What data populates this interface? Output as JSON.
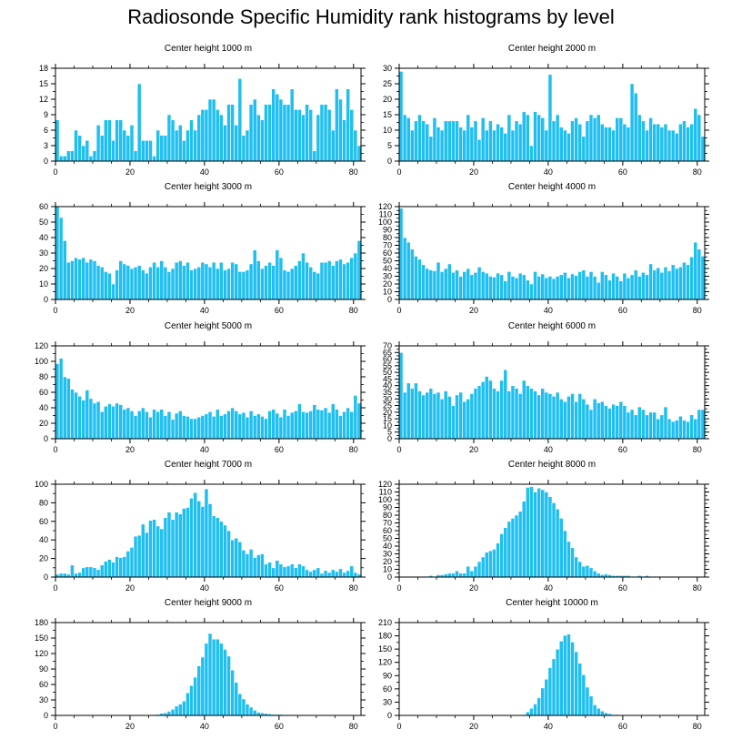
{
  "page_title": "Radiosonde Specific Humidity rank histograms by level",
  "colors": {
    "bar": "#1fbfef",
    "bar_edge": "#ffffff",
    "axis": "#000000"
  },
  "chart_data": [
    {
      "type": "bar",
      "title": "Center height 1000 m",
      "xlim": [
        0,
        82
      ],
      "ylim": [
        0,
        18
      ],
      "x_ticks": [
        0,
        20,
        40,
        60,
        80
      ],
      "y_ticks": [
        0,
        3,
        6,
        9,
        12,
        15,
        18
      ],
      "values": [
        8,
        1,
        1,
        2,
        2,
        6,
        5,
        3,
        4,
        1,
        2,
        7,
        5,
        8,
        8,
        4,
        8,
        8,
        6,
        5,
        7,
        2,
        15,
        4,
        4,
        4,
        1,
        6,
        5,
        5,
        9,
        8,
        6,
        7,
        4,
        6,
        8,
        6,
        9,
        10,
        10,
        12,
        12,
        10,
        9,
        7,
        11,
        11,
        7,
        16,
        5,
        6,
        11,
        12,
        9,
        8,
        11,
        11,
        14,
        13,
        12,
        11,
        11,
        14,
        10,
        10,
        9,
        11,
        10,
        2,
        9,
        11,
        11,
        10,
        6,
        14,
        12,
        8,
        14,
        10,
        6,
        3
      ]
    },
    {
      "type": "bar",
      "title": "Center height 2000 m",
      "xlim": [
        0,
        82
      ],
      "ylim": [
        0,
        30
      ],
      "x_ticks": [
        0,
        20,
        40,
        60,
        80
      ],
      "y_ticks": [
        0,
        5,
        10,
        15,
        20,
        25,
        30
      ],
      "values": [
        29,
        15,
        14,
        10,
        13,
        15,
        13,
        12,
        8,
        14,
        11,
        10,
        13,
        13,
        13,
        13,
        11,
        10,
        15,
        11,
        13,
        7,
        14,
        10,
        13,
        10,
        12,
        11,
        9,
        15,
        10,
        13,
        12,
        16,
        15,
        5,
        16,
        15,
        14,
        10,
        28,
        13,
        15,
        11,
        10,
        9,
        13,
        14,
        12,
        8,
        13,
        15,
        14,
        15,
        12,
        11,
        11,
        10,
        14,
        14,
        12,
        11,
        25,
        22,
        15,
        13,
        10,
        14,
        12,
        12,
        11,
        12,
        10,
        10,
        9,
        12,
        13,
        11,
        12,
        17,
        15,
        8
      ]
    },
    {
      "type": "bar",
      "title": "Center height 3000 m",
      "xlim": [
        0,
        82
      ],
      "ylim": [
        0,
        60
      ],
      "x_ticks": [
        0,
        20,
        40,
        60,
        80
      ],
      "y_ticks": [
        0,
        10,
        20,
        30,
        40,
        50,
        60
      ],
      "values": [
        60,
        53,
        38,
        24,
        25,
        27,
        26,
        27,
        24,
        26,
        25,
        22,
        21,
        18,
        17,
        10,
        19,
        25,
        23,
        22,
        20,
        21,
        22,
        19,
        17,
        21,
        24,
        21,
        25,
        21,
        18,
        20,
        24,
        25,
        22,
        24,
        19,
        20,
        21,
        24,
        23,
        21,
        24,
        20,
        24,
        19,
        20,
        24,
        23,
        18,
        18,
        19,
        23,
        32,
        25,
        20,
        22,
        24,
        22,
        32,
        27,
        19,
        18,
        20,
        22,
        25,
        30,
        24,
        21,
        18,
        17,
        24,
        24,
        25,
        22,
        25,
        26,
        23,
        24,
        27,
        30,
        38
      ]
    },
    {
      "type": "bar",
      "title": "Center height 4000 m",
      "xlim": [
        0,
        82
      ],
      "ylim": [
        0,
        120
      ],
      "x_ticks": [
        0,
        20,
        40,
        60,
        80
      ],
      "y_ticks": [
        0,
        10,
        20,
        30,
        40,
        50,
        60,
        70,
        80,
        90,
        100,
        110,
        120
      ],
      "values": [
        118,
        80,
        74,
        65,
        56,
        52,
        45,
        40,
        38,
        37,
        48,
        36,
        40,
        46,
        35,
        38,
        30,
        36,
        40,
        32,
        35,
        42,
        36,
        34,
        30,
        29,
        34,
        32,
        24,
        36,
        30,
        28,
        34,
        32,
        25,
        20,
        36,
        30,
        33,
        28,
        30,
        27,
        30,
        32,
        35,
        28,
        33,
        31,
        36,
        38,
        30,
        36,
        30,
        22,
        36,
        32,
        25,
        34,
        30,
        24,
        34,
        28,
        32,
        38,
        30,
        35,
        32,
        46,
        38,
        41,
        35,
        42,
        37,
        45,
        40,
        42,
        48,
        45,
        55,
        74,
        65,
        56
      ]
    },
    {
      "type": "bar",
      "title": "Center height 5000 m",
      "xlim": [
        0,
        82
      ],
      "ylim": [
        0,
        120
      ],
      "x_ticks": [
        0,
        20,
        40,
        60,
        80
      ],
      "y_ticks": [
        0,
        20,
        40,
        60,
        80,
        100,
        120
      ],
      "values": [
        97,
        104,
        80,
        78,
        64,
        60,
        55,
        50,
        63,
        52,
        46,
        48,
        35,
        42,
        45,
        42,
        46,
        44,
        38,
        40,
        36,
        30,
        36,
        40,
        35,
        28,
        38,
        35,
        38,
        30,
        35,
        25,
        33,
        36,
        30,
        29,
        26,
        26,
        28,
        30,
        32,
        35,
        29,
        38,
        30,
        32,
        36,
        40,
        36,
        32,
        34,
        28,
        36,
        30,
        32,
        29,
        26,
        36,
        38,
        33,
        28,
        38,
        30,
        34,
        36,
        45,
        35,
        34,
        36,
        44,
        38,
        37,
        40,
        34,
        45,
        38,
        30,
        35,
        40,
        35,
        56,
        46
      ]
    },
    {
      "type": "bar",
      "title": "Center height 6000 m",
      "xlim": [
        0,
        82
      ],
      "ylim": [
        0,
        70
      ],
      "x_ticks": [
        0,
        20,
        40,
        60,
        80
      ],
      "y_ticks": [
        0,
        5,
        10,
        15,
        20,
        25,
        30,
        35,
        40,
        45,
        50,
        55,
        60,
        65,
        70
      ],
      "values": [
        65,
        35,
        42,
        38,
        42,
        36,
        33,
        35,
        38,
        34,
        35,
        30,
        36,
        32,
        25,
        33,
        35,
        28,
        30,
        34,
        38,
        40,
        43,
        47,
        44,
        38,
        36,
        44,
        52,
        36,
        40,
        38,
        34,
        44,
        40,
        38,
        36,
        33,
        38,
        35,
        34,
        32,
        35,
        30,
        28,
        32,
        34,
        28,
        34,
        30,
        26,
        22,
        30,
        27,
        28,
        25,
        23,
        26,
        25,
        28,
        25,
        20,
        22,
        18,
        24,
        22,
        18,
        20,
        20,
        15,
        18,
        24,
        15,
        13,
        14,
        17,
        14,
        13,
        18,
        15,
        22,
        22
      ]
    },
    {
      "type": "bar",
      "title": "Center height 7000 m",
      "xlim": [
        0,
        82
      ],
      "ylim": [
        0,
        100
      ],
      "x_ticks": [
        0,
        20,
        40,
        60,
        80
      ],
      "y_ticks": [
        0,
        20,
        40,
        60,
        80,
        100
      ],
      "values": [
        3,
        4,
        4,
        3,
        13,
        4,
        5,
        10,
        11,
        11,
        10,
        8,
        13,
        17,
        19,
        16,
        22,
        21,
        22,
        28,
        32,
        44,
        45,
        57,
        48,
        61,
        62,
        55,
        52,
        64,
        70,
        62,
        70,
        68,
        74,
        75,
        85,
        91,
        82,
        76,
        95,
        79,
        66,
        64,
        60,
        56,
        50,
        40,
        42,
        38,
        29,
        25,
        30,
        21,
        24,
        25,
        14,
        16,
        10,
        18,
        14,
        11,
        12,
        14,
        10,
        14,
        12,
        8,
        6,
        8,
        10,
        4,
        7,
        5,
        8,
        6,
        9,
        5,
        7,
        12,
        5,
        3
      ]
    },
    {
      "type": "bar",
      "title": "Center height 8000 m",
      "xlim": [
        0,
        82
      ],
      "ylim": [
        0,
        120
      ],
      "x_ticks": [
        0,
        20,
        40,
        60,
        80
      ],
      "y_ticks": [
        0,
        10,
        20,
        30,
        40,
        50,
        60,
        70,
        80,
        90,
        100,
        110,
        120
      ],
      "values": [
        0,
        0,
        0,
        0,
        0,
        0,
        1,
        1,
        2,
        1,
        3,
        3,
        4,
        5,
        5,
        8,
        5,
        5,
        14,
        8,
        14,
        20,
        26,
        32,
        34,
        36,
        44,
        56,
        64,
        72,
        76,
        80,
        85,
        98,
        116,
        117,
        110,
        115,
        113,
        110,
        104,
        96,
        88,
        76,
        60,
        46,
        38,
        26,
        20,
        14,
        15,
        12,
        8,
        5,
        3,
        4,
        3,
        2,
        2,
        2,
        2,
        2,
        1,
        1,
        2,
        1,
        2,
        1,
        1,
        1,
        1,
        1,
        1,
        1,
        0,
        0,
        0,
        0,
        0,
        0,
        0,
        0
      ]
    },
    {
      "type": "bar",
      "title": "Center height 9000 m",
      "xlim": [
        0,
        82
      ],
      "ylim": [
        0,
        180
      ],
      "x_ticks": [
        0,
        20,
        40,
        60,
        80
      ],
      "y_ticks": [
        0,
        30,
        60,
        90,
        120,
        150,
        180
      ],
      "values": [
        0,
        0,
        0,
        0,
        0,
        0,
        0,
        0,
        0,
        0,
        0,
        0,
        0,
        0,
        0,
        0,
        0,
        0,
        0,
        0,
        0,
        0,
        0,
        0,
        0,
        0,
        1,
        2,
        4,
        5,
        8,
        12,
        18,
        22,
        28,
        44,
        58,
        74,
        96,
        113,
        140,
        159,
        148,
        148,
        140,
        128,
        115,
        88,
        64,
        42,
        32,
        22,
        16,
        10,
        6,
        5,
        4,
        3,
        2,
        2,
        2,
        1,
        1,
        1,
        1,
        1,
        1,
        0,
        0,
        0,
        0,
        0,
        0,
        0,
        0,
        0,
        0,
        0,
        0,
        0,
        0,
        0
      ]
    },
    {
      "type": "bar",
      "title": "Center height 10000 m",
      "xlim": [
        0,
        82
      ],
      "ylim": [
        0,
        210
      ],
      "x_ticks": [
        0,
        20,
        40,
        60,
        80
      ],
      "y_ticks": [
        0,
        30,
        60,
        90,
        120,
        150,
        180,
        210
      ],
      "values": [
        0,
        0,
        0,
        0,
        0,
        0,
        0,
        0,
        0,
        0,
        0,
        0,
        0,
        0,
        0,
        0,
        0,
        0,
        0,
        0,
        0,
        0,
        0,
        0,
        0,
        0,
        0,
        0,
        0,
        0,
        0,
        0,
        1,
        2,
        8,
        16,
        26,
        40,
        62,
        82,
        108,
        128,
        150,
        168,
        181,
        184,
        166,
        144,
        118,
        92,
        64,
        44,
        24,
        16,
        10,
        6,
        4,
        2,
        2,
        1,
        1,
        1,
        0,
        0,
        0,
        0,
        0,
        0,
        0,
        0,
        0,
        0,
        0,
        0,
        0,
        0,
        0,
        0,
        0,
        0,
        0,
        0
      ]
    }
  ]
}
